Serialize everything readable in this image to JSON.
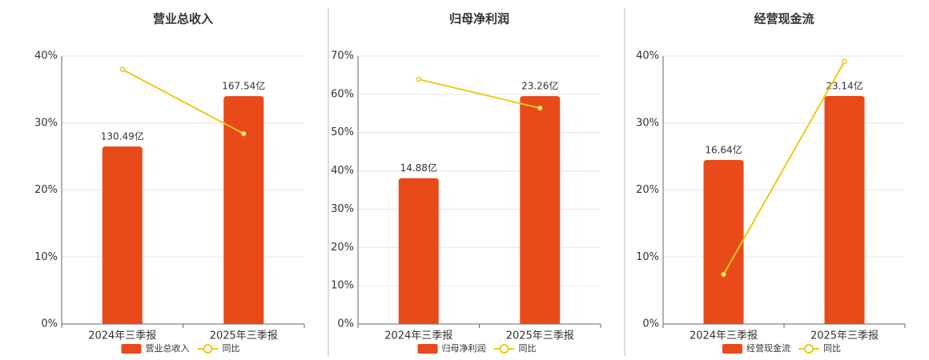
{
  "chart_data": [
    {
      "type": "bar",
      "title": "营业总收入",
      "categories": [
        "2024年三季报",
        "2025年三季报"
      ],
      "series": [
        {
          "name": "营业总收入",
          "color": "#e84a1a",
          "values": [
            130.49,
            167.54
          ],
          "value_labels": [
            "130.49亿",
            "167.54亿"
          ],
          "axis": "y2"
        },
        {
          "name": "同比",
          "type": "line",
          "color": "#f0c818",
          "values": [
            38,
            28.4
          ]
        }
      ],
      "ylim": [
        0,
        40
      ],
      "yticks": [
        {
          "value": 0,
          "label": "0%"
        },
        {
          "value": 10,
          "label": "10%"
        },
        {
          "value": 20,
          "label": "20%"
        },
        {
          "value": 30,
          "label": "30%"
        },
        {
          "value": 40,
          "label": "40%"
        }
      ],
      "y2lim": [
        0,
        197
      ],
      "grid": true,
      "legend": "bottom"
    },
    {
      "type": "bar",
      "title": "归母净利润",
      "categories": [
        "2024年三季报",
        "2025年三季报"
      ],
      "series": [
        {
          "name": "归母净利润",
          "color": "#e84a1a",
          "values": [
            14.88,
            23.26
          ],
          "value_labels": [
            "14.88亿",
            "23.26亿"
          ],
          "axis": "y2"
        },
        {
          "name": "同比",
          "type": "line",
          "color": "#f0c818",
          "values": [
            63.9,
            56.4
          ]
        }
      ],
      "ylim": [
        0,
        70
      ],
      "yticks": [
        {
          "value": 0,
          "label": "0%"
        },
        {
          "value": 10,
          "label": "10%"
        },
        {
          "value": 20,
          "label": "20%"
        },
        {
          "value": 30,
          "label": "30%"
        },
        {
          "value": 40,
          "label": "40%"
        },
        {
          "value": 50,
          "label": "50%"
        },
        {
          "value": 60,
          "label": "60%"
        },
        {
          "value": 70,
          "label": "70%"
        }
      ],
      "y2lim": [
        0,
        27.35
      ],
      "grid": true,
      "legend": "bottom"
    },
    {
      "type": "bar",
      "title": "经营现金流",
      "categories": [
        "2024年三季报",
        "2025年三季报"
      ],
      "series": [
        {
          "name": "经营现金流",
          "color": "#e84a1a",
          "values": [
            16.64,
            23.14
          ],
          "value_labels": [
            "16.64亿",
            "23.14亿"
          ],
          "axis": "y2"
        },
        {
          "name": "同比",
          "type": "line",
          "color": "#f0c818",
          "values": [
            7.4,
            39.2
          ]
        }
      ],
      "ylim": [
        0,
        40
      ],
      "yticks": [
        {
          "value": 0,
          "label": "0%"
        },
        {
          "value": 10,
          "label": "10%"
        },
        {
          "value": 20,
          "label": "20%"
        },
        {
          "value": 30,
          "label": "30%"
        },
        {
          "value": 40,
          "label": "40%"
        }
      ],
      "y2lim": [
        0,
        27.2
      ],
      "grid": true,
      "legend": "bottom"
    }
  ]
}
